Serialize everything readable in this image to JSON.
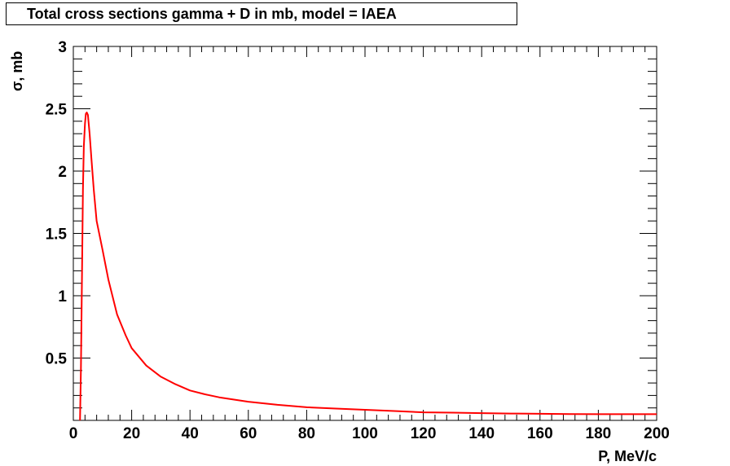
{
  "chart_data": {
    "type": "line",
    "title": "Total cross sections gamma + D in mb, model = IAEA",
    "xlabel": "P, MeV/c",
    "ylabel": "σ, mb",
    "xlim": [
      0,
      200
    ],
    "ylim": [
      0,
      3
    ],
    "x_ticks": [
      "0",
      "20",
      "40",
      "60",
      "80",
      "100",
      "120",
      "140",
      "160",
      "180",
      "200"
    ],
    "y_ticks": [
      "0.5",
      "1",
      "1.5",
      "2",
      "2.5",
      "3"
    ],
    "grid": false,
    "legend": "none",
    "line_color": "#ff0000",
    "series": [
      {
        "x": [
          2.3,
          2.6,
          3.0,
          3.3,
          3.6,
          4.0,
          4.3,
          4.6,
          5.0,
          5.6,
          6.2,
          7,
          8,
          10,
          12,
          15,
          18,
          20,
          25,
          30,
          35,
          40,
          45,
          50,
          60,
          70,
          80,
          90,
          100,
          110,
          120,
          130,
          140,
          150,
          160,
          170,
          180,
          190,
          200
        ],
        "y": [
          0.0,
          0.4,
          1.2,
          1.85,
          2.2,
          2.38,
          2.46,
          2.47,
          2.45,
          2.3,
          2.1,
          1.85,
          1.6,
          1.37,
          1.13,
          0.85,
          0.68,
          0.58,
          0.44,
          0.35,
          0.29,
          0.24,
          0.21,
          0.185,
          0.15,
          0.125,
          0.105,
          0.095,
          0.085,
          0.075,
          0.065,
          0.062,
          0.058,
          0.055,
          0.053,
          0.051,
          0.05,
          0.05,
          0.05
        ]
      }
    ]
  }
}
